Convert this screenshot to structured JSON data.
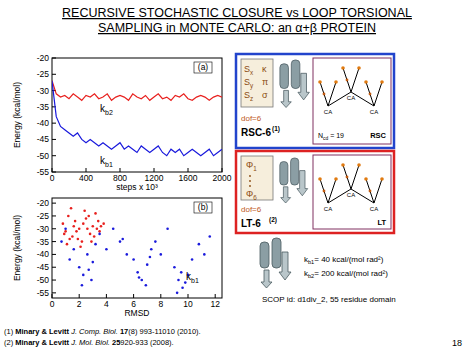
{
  "title": [
    "RECURSIVE STOCHASTIC CLOSURE vs LOOP TORSIONAL",
    "SAMPLING in MONTE CARLO: an α+β PROTEIN"
  ],
  "chart_data": [
    {
      "type": "line",
      "x": [
        0,
        50,
        100,
        150,
        200,
        250,
        300,
        350,
        400,
        450,
        500,
        550,
        600,
        650,
        700,
        750,
        800,
        850,
        900,
        950,
        1000,
        1050,
        1100,
        1150,
        1200,
        1250,
        1300,
        1350,
        1400,
        1450,
        1500,
        1550,
        1600,
        1650,
        1700,
        1750,
        1800,
        1850,
        1900,
        1950,
        2000
      ],
      "series": [
        {
          "name": "kb2",
          "color": "#e8201e",
          "values": [
            -27,
            -31,
            -32,
            -31.5,
            -32.5,
            -31,
            -32,
            -33,
            -31.5,
            -32,
            -31,
            -32.5,
            -32,
            -31,
            -33,
            -32,
            -31.5,
            -32,
            -33,
            -31,
            -32,
            -32.5,
            -31.5,
            -33,
            -32,
            -31,
            -32.5,
            -32,
            -33,
            -31.5,
            -32,
            -31,
            -32.5,
            -33,
            -32,
            -31.5,
            -32,
            -33,
            -32,
            -31.5,
            -32
          ]
        },
        {
          "name": "kb1",
          "color": "#1a1adc",
          "values": [
            -27,
            -38,
            -41,
            -42,
            -43,
            -44,
            -43,
            -45,
            -46,
            -45,
            -46,
            -47,
            -46,
            -47,
            -48,
            -47,
            -46,
            -48,
            -47,
            -48,
            -49,
            -47,
            -48,
            -49,
            -48,
            -47,
            -49,
            -50,
            -48,
            -49,
            -48,
            -50,
            -49,
            -48,
            -49,
            -50,
            -49,
            -48,
            -50,
            -49,
            -48
          ]
        }
      ],
      "xlabel": "steps x 10³",
      "ylabel": "Energy (kcal/mol)",
      "xlim": [
        0,
        2000
      ],
      "ylim": [
        -55,
        -20
      ],
      "xticks": [
        0,
        400,
        800,
        1200,
        1600,
        2000
      ],
      "yticks": [
        -20,
        -25,
        -30,
        -35,
        -40,
        -45,
        -50,
        -55
      ],
      "grid": false,
      "annotations": [
        "(a)"
      ]
    },
    {
      "type": "scatter",
      "series": [
        {
          "color": "#e8201e",
          "x": [
            0.8,
            1.0,
            1.2,
            1.5,
            1.7,
            2.0,
            2.2,
            2.5,
            2.8,
            3.0,
            3.2,
            3.5,
            1.1,
            1.4,
            1.9,
            2.3,
            2.6,
            3.1,
            3.4,
            0.9,
            1.6,
            2.1,
            2.7,
            3.3,
            3.8,
            1.3,
            1.8,
            2.4,
            2.9,
            3.6
          ],
          "values": [
            -28,
            -31,
            -25,
            -33,
            -27,
            -30,
            -35,
            -26,
            -32,
            -29,
            -24,
            -31,
            -36,
            -22,
            -34,
            -28,
            -30,
            -33,
            -27,
            -32,
            -29,
            -37,
            -25,
            -30,
            -28,
            -34,
            -31,
            -23,
            -35,
            -29
          ]
        },
        {
          "color": "#1a1adc",
          "x": [
            0.7,
            1.0,
            1.3,
            1.6,
            2.0,
            2.3,
            2.6,
            2.9,
            3.2,
            3.5,
            4.0,
            4.5,
            5.0,
            5.5,
            6.0,
            6.3,
            6.6,
            7.0,
            7.3,
            7.6,
            8.0,
            8.5,
            9.0,
            9.3,
            9.6,
            10.0,
            10.3,
            10.8,
            11.2,
            11.6,
            2.2,
            2.7,
            3.0,
            6.4,
            6.9,
            7.2,
            9.2,
            9.5,
            9.8,
            5.2
          ],
          "values": [
            -35,
            -30,
            -42,
            -38,
            -45,
            -48,
            -40,
            -50,
            -36,
            -32,
            -38,
            -30,
            -35,
            -40,
            -42,
            -47,
            -50,
            -44,
            -38,
            -35,
            -40,
            -30,
            -45,
            -50,
            -53,
            -48,
            -42,
            -36,
            -40,
            -33,
            -52,
            -46,
            -43,
            -49,
            -52,
            -41,
            -55,
            -47,
            -51,
            -34
          ]
        }
      ],
      "xlabel": "RMSD",
      "ylabel": "Energy (kcal/mol)",
      "xlim": [
        0,
        12.5
      ],
      "ylim": [
        -57,
        -18
      ],
      "xticks": [
        0,
        2,
        4,
        6,
        8,
        10,
        12
      ],
      "yticks": [
        -20,
        -25,
        -30,
        -35,
        -40,
        -45,
        -50,
        -55
      ],
      "grid": false,
      "annotations": [
        "(b)",
        "kb1"
      ]
    }
  ],
  "rsc": {
    "params": [
      [
        "Sx",
        "κ"
      ],
      [
        "Sy",
        "π"
      ],
      [
        "Sz",
        "σ"
      ]
    ],
    "dof": "dof=6",
    "name": "RSC-6",
    "ref": "(1)",
    "ncd": "Ncd = 19",
    "scheme": "RSC",
    "atoms": [
      "CA",
      "CA",
      "CA"
    ]
  },
  "lt": {
    "params": [
      "Φ1",
      "Φ6"
    ],
    "dof": "dof=6",
    "name": "LT-6",
    "ref": "(2)",
    "scheme": "LT",
    "atoms": [
      "CA",
      "CA",
      "CA"
    ]
  },
  "constants": [
    "kb1= 40 kcal/(mol rad²)",
    "kb2= 200 kcal/(mol rad²)"
  ],
  "scop": "SCOP id: d1div_2, 55 residue domain",
  "references": [
    [
      "(1)",
      "Minary & Levitt",
      "J. Comp. Biol.",
      "17",
      "(8) 993-11010 (2010)."
    ],
    [
      "(2)",
      "Minary & Levitt",
      "J. Mol. Biol.",
      "25",
      "920-933 (2008)."
    ]
  ],
  "page": "18"
}
